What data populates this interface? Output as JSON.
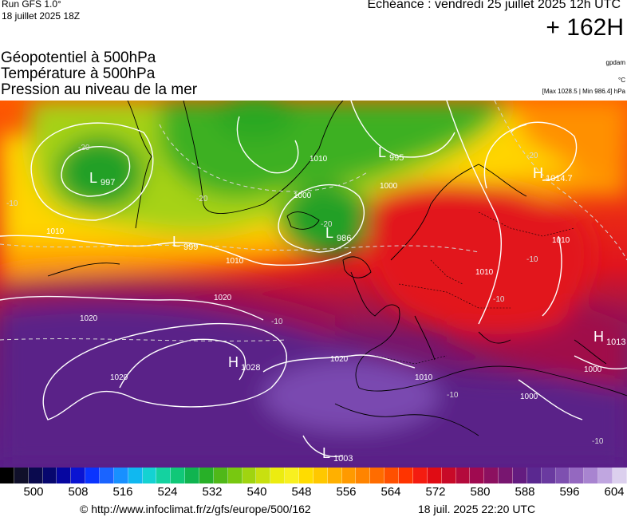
{
  "header": {
    "run": "Run GFS 1.0°",
    "run_date": "18 juillet 2025 18Z",
    "echeance": "Echéance : vendredi 25 juillet 2025 12h UTC",
    "lead": "+ 162H",
    "title_lines": [
      "Géopotentiel à 500hPa",
      "Température à 500hPa",
      "Pression au niveau de la mer"
    ],
    "unit_geo": "gpdam",
    "unit_temp": "°C",
    "maxmin": "[Max 1028.5 | Min 986.4] hPa"
  },
  "map": {
    "pressure_centers": [
      {
        "type": "L",
        "value": "997"
      },
      {
        "type": "L",
        "value": "999"
      },
      {
        "type": "L",
        "value": "986"
      },
      {
        "type": "L",
        "value": "995"
      },
      {
        "type": "H",
        "value": "1014.7"
      },
      {
        "type": "H",
        "value": "1028"
      },
      {
        "type": "H",
        "value": "1013"
      },
      {
        "type": "L",
        "value": "1003"
      }
    ],
    "isobar_labels": [
      "1010",
      "1000",
      "1010",
      "1020",
      "1020",
      "1020",
      "1010",
      "1000",
      "1010",
      "1020",
      "1010",
      "1000",
      "1000",
      "1010"
    ],
    "temp_labels": [
      "-20",
      "-20",
      "-10",
      "-10",
      "-10",
      "-20",
      "-20",
      "-10",
      "-10",
      "-10"
    ]
  },
  "colorscale": {
    "colors": [
      "#000000",
      "#10102a",
      "#0a0a4e",
      "#07076e",
      "#0606a0",
      "#0a14d2",
      "#0a34ff",
      "#1a64ff",
      "#1890ff",
      "#10b8f0",
      "#14d2d2",
      "#14d2a0",
      "#10c878",
      "#10b450",
      "#28b028",
      "#50b818",
      "#78c810",
      "#a0d410",
      "#c8e010",
      "#ecec10",
      "#f8f020",
      "#ffdc00",
      "#ffc800",
      "#ffb000",
      "#ff9a00",
      "#ff8400",
      "#ff6c00",
      "#ff5000",
      "#ff3400",
      "#f41c10",
      "#e00c14",
      "#c80a28",
      "#b40a3c",
      "#a00a50",
      "#8c1060",
      "#781670",
      "#641c80",
      "#5a2890",
      "#6a3aa0",
      "#7e50b0",
      "#9468c0",
      "#a884d0",
      "#c0a6e0",
      "#dcd0ee"
    ],
    "labels": [
      "500",
      "508",
      "516",
      "524",
      "532",
      "540",
      "548",
      "556",
      "564",
      "572",
      "580",
      "588",
      "596",
      "604"
    ]
  },
  "footer": {
    "url": "© http://www.infoclimat.fr/z/gfs/europe/500/162",
    "generated": "18 juil. 2025 22:20 UTC"
  }
}
